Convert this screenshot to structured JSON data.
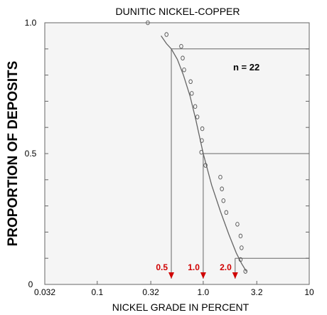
{
  "chart_data": {
    "type": "scatter",
    "title": "DUNITIC NICKEL-COPPER",
    "xlabel": "NICKEL GRADE IN PERCENT",
    "ylabel": "PROPORTION OF DEPOSITS",
    "x_scale": "log",
    "xlim": [
      0.032,
      10
    ],
    "ylim": [
      0,
      1.0
    ],
    "x_ticks": [
      0.032,
      0.1,
      0.32,
      1,
      3.2,
      10
    ],
    "x_tick_labels": [
      "0.032",
      "0.1",
      "0.32",
      "1.0",
      "3.2",
      "10"
    ],
    "y_ticks": [
      0,
      0.5,
      1.0
    ],
    "y_tick_labels": [
      "0",
      "0.5",
      "1.0"
    ],
    "note": "n = 22",
    "points": [
      {
        "x": 0.3,
        "y": 1.0
      },
      {
        "x": 0.45,
        "y": 0.955
      },
      {
        "x": 0.62,
        "y": 0.91
      },
      {
        "x": 0.64,
        "y": 0.865
      },
      {
        "x": 0.66,
        "y": 0.82
      },
      {
        "x": 0.76,
        "y": 0.775
      },
      {
        "x": 0.78,
        "y": 0.73
      },
      {
        "x": 0.84,
        "y": 0.68
      },
      {
        "x": 0.88,
        "y": 0.64
      },
      {
        "x": 0.98,
        "y": 0.595
      },
      {
        "x": 0.97,
        "y": 0.55
      },
      {
        "x": 0.96,
        "y": 0.505
      },
      {
        "x": 1.05,
        "y": 0.455
      },
      {
        "x": 1.45,
        "y": 0.41
      },
      {
        "x": 1.5,
        "y": 0.365
      },
      {
        "x": 1.55,
        "y": 0.32
      },
      {
        "x": 1.65,
        "y": 0.275
      },
      {
        "x": 2.1,
        "y": 0.23
      },
      {
        "x": 2.25,
        "y": 0.185
      },
      {
        "x": 2.3,
        "y": 0.14
      },
      {
        "x": 2.25,
        "y": 0.095
      },
      {
        "x": 2.5,
        "y": 0.05
      }
    ],
    "fitted_curve": [
      [
        0.4,
        0.95
      ],
      [
        0.45,
        0.92
      ],
      [
        0.5,
        0.9
      ],
      [
        0.57,
        0.86
      ],
      [
        0.65,
        0.8
      ],
      [
        0.75,
        0.72
      ],
      [
        0.85,
        0.63
      ],
      [
        1.0,
        0.5
      ],
      [
        1.2,
        0.38
      ],
      [
        1.45,
        0.28
      ],
      [
        1.75,
        0.19
      ],
      [
        2.05,
        0.12
      ],
      [
        2.3,
        0.08
      ],
      [
        2.55,
        0.05
      ]
    ],
    "percentile_lines": [
      {
        "value": 0.5,
        "y": 0.9,
        "label": "0.5"
      },
      {
        "value": 1.0,
        "y": 0.5,
        "label": "1.0"
      },
      {
        "value": 2.0,
        "y": 0.1,
        "label": "2.0"
      }
    ],
    "colors": {
      "curve": "#666666",
      "points": "#555555",
      "annotation": "#d00000",
      "plot_background": "#f5f5f5"
    }
  }
}
